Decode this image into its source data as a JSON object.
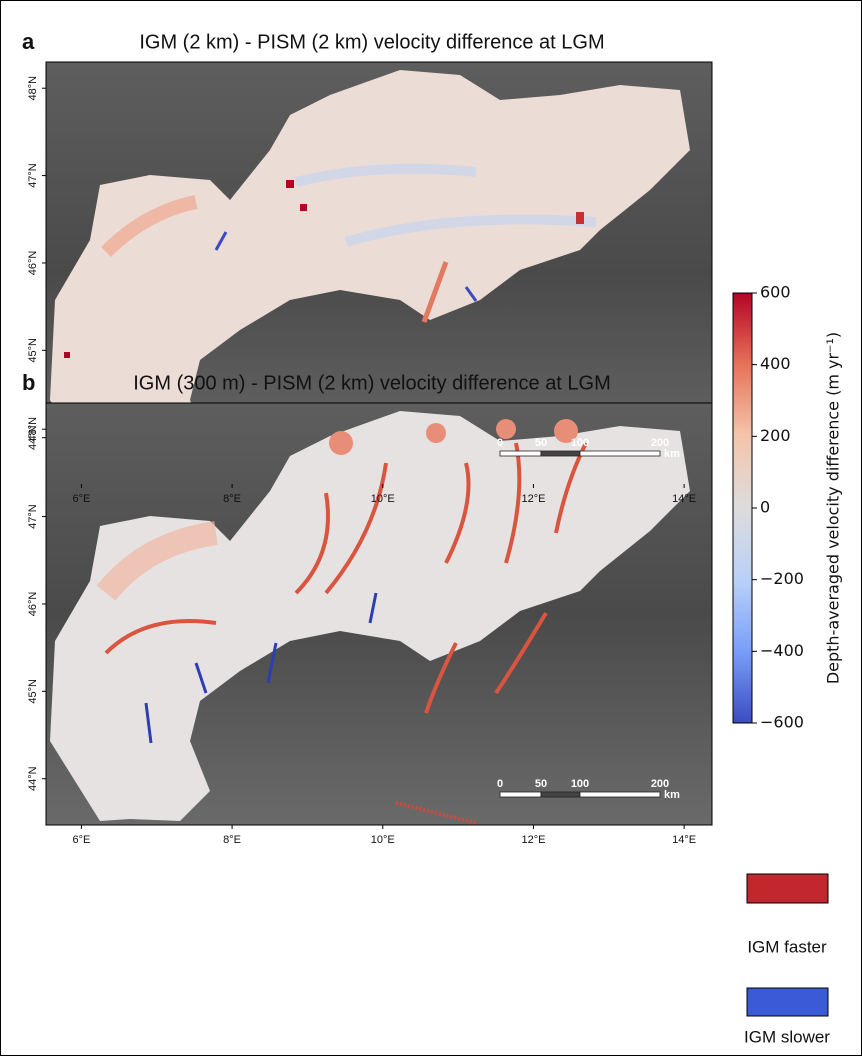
{
  "panels": [
    {
      "letter": "a",
      "title": "IGM (2 km) - PISM (2 km) velocity difference at LGM",
      "xlim": [
        5.53,
        14.37
      ],
      "ylim": [
        43.47,
        48.3
      ],
      "xticks": [
        {
          "value": 6,
          "label": "6°E"
        },
        {
          "value": 8,
          "label": "8°E"
        },
        {
          "value": 10,
          "label": "10°E"
        },
        {
          "value": 12,
          "label": "12°E"
        },
        {
          "value": 14,
          "label": "14°E"
        }
      ],
      "yticks": [
        {
          "value": 44,
          "label": "44°N"
        },
        {
          "value": 45,
          "label": "45°N"
        },
        {
          "value": 46,
          "label": "46°N"
        },
        {
          "value": 47,
          "label": "47°N"
        },
        {
          "value": 48,
          "label": "48°N"
        }
      ],
      "scale_bar": {
        "labels": [
          "0",
          "50",
          "100",
          "200"
        ],
        "unit": "km"
      }
    },
    {
      "letter": "b",
      "title": "IGM (300 m) - PISM (2 km) velocity difference at LGM",
      "xlim": [
        5.53,
        14.37
      ],
      "ylim": [
        43.47,
        48.3
      ],
      "xticks": [
        {
          "value": 6,
          "label": "6°E"
        },
        {
          "value": 8,
          "label": "8°E"
        },
        {
          "value": 10,
          "label": "10°E"
        },
        {
          "value": 12,
          "label": "12°E"
        },
        {
          "value": 14,
          "label": "14°E"
        }
      ],
      "yticks": [
        {
          "value": 44,
          "label": "44°N"
        },
        {
          "value": 45,
          "label": "45°N"
        },
        {
          "value": 46,
          "label": "46°N"
        },
        {
          "value": 47,
          "label": "47°N"
        },
        {
          "value": 48,
          "label": "48°N"
        }
      ],
      "scale_bar": {
        "labels": [
          "0",
          "50",
          "100",
          "200"
        ],
        "unit": "km"
      }
    }
  ],
  "colorbar": {
    "label": "Depth-averaged velocity difference (m yr⁻¹)",
    "lim": [
      -600,
      600
    ],
    "ticks": [
      {
        "value": -600,
        "label": "−600"
      },
      {
        "value": -400,
        "label": "−400"
      },
      {
        "value": -200,
        "label": "−200"
      },
      0,
      200,
      400,
      600
    ]
  },
  "legend": [
    {
      "label": "IGM faster",
      "color": "#c1272d"
    },
    {
      "label": "IGM slower",
      "color": "#3b5bd6"
    }
  ]
}
